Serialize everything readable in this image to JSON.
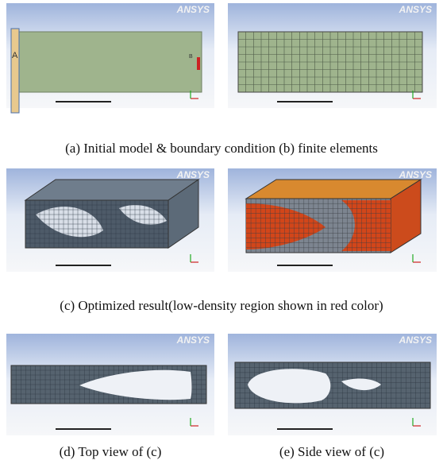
{
  "panels": [
    {
      "logo": "ANSYS",
      "markers": [
        "A",
        "B"
      ]
    },
    {
      "logo": "ANSYS"
    },
    {
      "logo": "ANSYS"
    },
    {
      "logo": "ANSYS"
    },
    {
      "logo": "ANSYS"
    },
    {
      "logo": "ANSYS"
    }
  ],
  "captions": [
    "(a) Initial model & boundary condition (b) finite elements",
    "(c) Optimized result(low-density region shown in red color)",
    "(d) Top view of (c)",
    "(e) Side view of (c)"
  ]
}
